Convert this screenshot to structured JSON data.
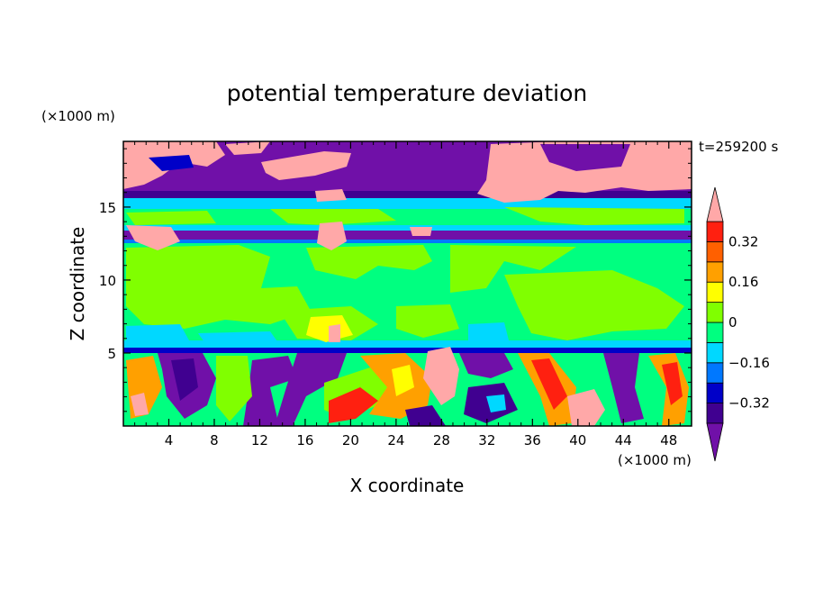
{
  "chart_data": {
    "type": "heatmap",
    "title": "potential temperature deviation",
    "xlabel": "X coordinate",
    "ylabel": "Z coordinate",
    "x_unit_label": "(×1000 m)",
    "y_unit_label": "(×1000 m)",
    "time_label": "t=259200 s",
    "xlim": [
      0,
      50
    ],
    "ylim": [
      0,
      19.5
    ],
    "x_ticks": [
      4,
      8,
      12,
      16,
      20,
      24,
      28,
      32,
      36,
      40,
      44,
      48
    ],
    "y_ticks": [
      5,
      10,
      15
    ],
    "colorbar": {
      "levels": [
        -0.4,
        -0.32,
        -0.24,
        -0.16,
        -0.08,
        0,
        0.08,
        0.16,
        0.24,
        0.32,
        0.4
      ],
      "labels": [
        "0.32",
        "0.16",
        "0",
        "−0.16",
        "−0.32"
      ],
      "label_values": [
        0.32,
        0.16,
        0,
        -0.16,
        -0.32
      ],
      "colors": [
        "#7010a8",
        "#400090",
        "#0000c8",
        "#0078ff",
        "#00d8ff",
        "#00ff80",
        "#80ff00",
        "#ffff00",
        "#ffa000",
        "#ff6000",
        "#ff2010",
        "#ffa8a8"
      ]
    },
    "grid": false
  }
}
